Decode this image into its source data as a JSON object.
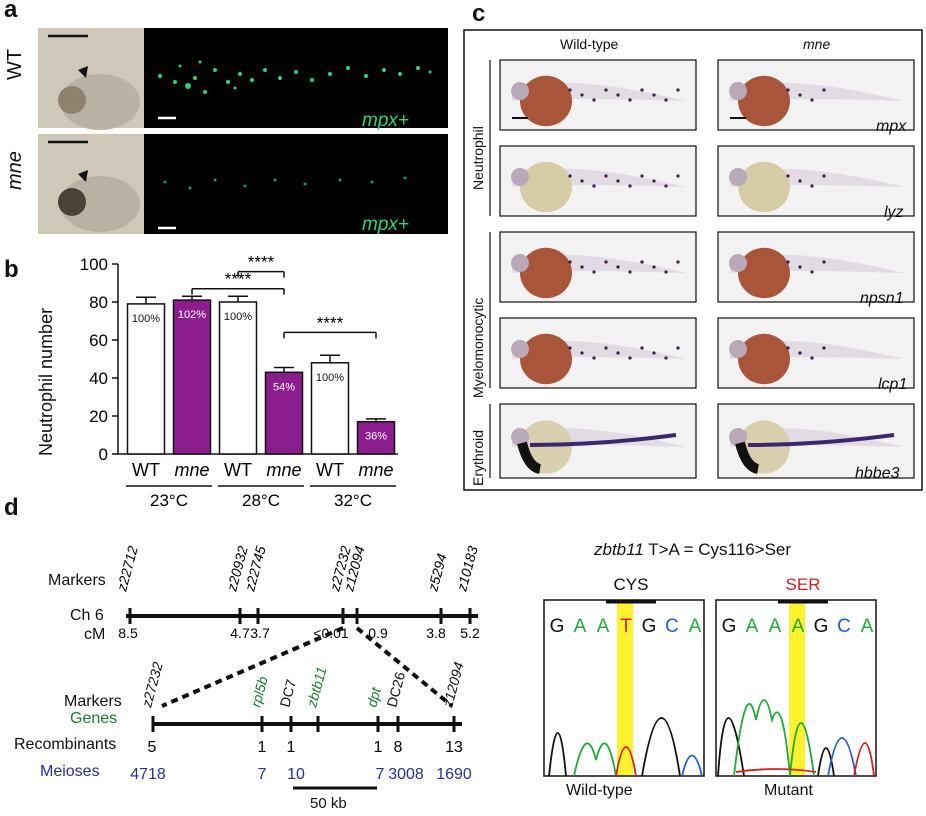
{
  "panel_a": {
    "label": "a",
    "rows": [
      {
        "genotype": "WT",
        "marker": "mpx+"
      },
      {
        "genotype": "mne",
        "marker": "mpx+"
      }
    ]
  },
  "panel_b": {
    "label": "b",
    "chart_data": {
      "type": "bar",
      "ylabel": "Neutrophil number",
      "ylim": [
        0,
        100
      ],
      "yticks": [
        0,
        20,
        40,
        60,
        80,
        100
      ],
      "categories": [
        "WT",
        "mne",
        "WT",
        "mne",
        "WT",
        "mne"
      ],
      "groups": [
        "23°C",
        "28°C",
        "32°C"
      ],
      "values": [
        79,
        81,
        80,
        43,
        48,
        17
      ],
      "errors": [
        3.5,
        2,
        3,
        2.5,
        4,
        1.5
      ],
      "percent_labels": [
        "100%",
        "102%",
        "100%",
        "54%",
        "100%",
        "36%"
      ],
      "colors": [
        "#ffffff",
        "#8b1d8c",
        "#ffffff",
        "#8b1d8c",
        "#ffffff",
        "#8b1d8c"
      ],
      "significance": [
        {
          "from": 2,
          "to": 3,
          "label": "****"
        },
        {
          "from": 1,
          "to": 3,
          "label": "****"
        },
        {
          "from": 3,
          "to": 5,
          "label": "****"
        }
      ]
    }
  },
  "panel_c": {
    "label": "c",
    "col_headers": [
      "Wild-type",
      "mne"
    ],
    "row_groups": [
      "Neutrophil",
      "Myelomonocytic",
      "Erythroid"
    ],
    "probes": [
      "mpx",
      "lyz",
      "npsn1",
      "lcp1",
      "hbbe3"
    ]
  },
  "panel_d": {
    "label": "d",
    "title_gene": "zbtb11",
    "title_rest": " T>A = Cys116>Ser",
    "markers_label": "Markers",
    "chrom_label": "Ch 6",
    "cm_label": "cM",
    "top_markers": [
      "z22712",
      "z20932",
      "z22745",
      "z27232",
      "z12094",
      "z5294",
      "z10183"
    ],
    "cm_values": [
      "8.5",
      "4.7",
      "3.7",
      "<0.01",
      "0.9",
      "3.8",
      "5.2"
    ],
    "markers2_label": "Markers",
    "genes_label": "Genes",
    "bottom_markers": [
      "z27232",
      "rpl5b",
      "DC7",
      "zbtb11",
      "dpt",
      "DC26",
      "z12094"
    ],
    "recombinants_label": "Recombinants",
    "recombinants": [
      "5",
      "1",
      "1",
      "1",
      "8",
      "13"
    ],
    "meioses_label": "Meioses",
    "meioses": [
      "4718",
      "7",
      "10",
      "7",
      "3008",
      "1690"
    ],
    "scale_label": "50 kb",
    "wt_codon": "CYS",
    "mut_codon": "SER",
    "wt_seq": [
      "G",
      "A",
      "A",
      "T",
      "G",
      "C",
      "A"
    ],
    "mut_seq": [
      "G",
      "A",
      "A",
      "A",
      "G",
      "C",
      "A"
    ],
    "wt_caption": "Wild-type",
    "mut_caption": "Mutant"
  }
}
